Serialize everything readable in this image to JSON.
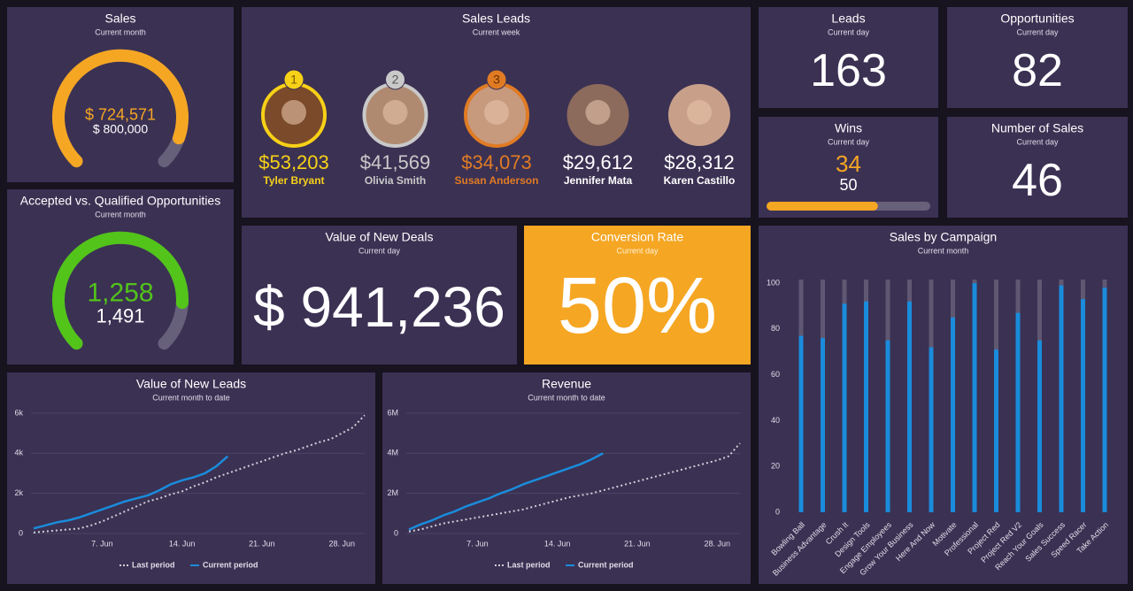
{
  "chart_data": [
    {
      "type": "gauge",
      "title": "Sales",
      "subtitle": "Current month",
      "value": 724571,
      "value_label": "$ 724,571",
      "max": 800000,
      "max_label": "$ 800,000",
      "color": "#f5a623"
    },
    {
      "type": "gauge",
      "title": "Accepted vs. Qualified Opportunities",
      "subtitle": "Current month",
      "value": 1258,
      "value_label": "1,258",
      "max": 1491,
      "max_label": "1,491",
      "color": "#52c41a"
    },
    {
      "type": "leaderboard",
      "title": "Sales Leads",
      "subtitle": "Current week",
      "names": [
        "Tyler Bryant",
        "Olivia Smith",
        "Susan Anderson",
        "Jennifer Mata",
        "Karen Castillo"
      ],
      "values": [
        53203,
        41569,
        34073,
        29612,
        28312
      ],
      "value_labels": [
        "$53,203",
        "$41,569",
        "$34,073",
        "$29,612",
        "$28,312"
      ],
      "ranks": [
        1,
        2,
        3
      ],
      "colors": [
        "#f7d117",
        "#c9c9c9",
        "#e07b24",
        "#ffffff",
        "#ffffff"
      ]
    },
    {
      "type": "kpi",
      "title": "Leads",
      "subtitle": "Current day",
      "value": 163
    },
    {
      "type": "kpi",
      "title": "Opportunities",
      "subtitle": "Current day",
      "value": 82
    },
    {
      "type": "progress",
      "title": "Wins",
      "subtitle": "Current day",
      "value": 34,
      "target": 50,
      "color": "#f5a623"
    },
    {
      "type": "kpi",
      "title": "Number of Sales",
      "subtitle": "Current day",
      "value": 46
    },
    {
      "type": "kpi",
      "title": "Value of New Deals",
      "subtitle": "Current day",
      "value": 941236,
      "value_label": "$ 941,236"
    },
    {
      "type": "kpi",
      "title": "Conversion Rate",
      "subtitle": "Current day",
      "value": 50,
      "value_label": "50%",
      "color": "#f5a623"
    },
    {
      "type": "bar",
      "title": "Sales by Campaign",
      "subtitle": "Current month",
      "categories": [
        "Bowling Ball",
        "Business Advantage",
        "Crush It",
        "Design Tools",
        "Engage Employees",
        "Grow Your Business",
        "Here And Now",
        "Motivate",
        "Professional",
        "Project Red",
        "Project Red V2",
        "Reach Your Goals",
        "Sales Success",
        "Speed Racer",
        "Take Action"
      ],
      "values": [
        77,
        76,
        91,
        92,
        75,
        92,
        72,
        85,
        100,
        71,
        87,
        75,
        99,
        93,
        98
      ],
      "color": "#1a8cdb",
      "ylim": [
        0,
        100
      ],
      "yticks": [
        0,
        20,
        40,
        60,
        80,
        100
      ]
    },
    {
      "type": "line",
      "title": "Value of New Leads",
      "subtitle": "Current month to date",
      "x": [
        1,
        2,
        3,
        4,
        5,
        6,
        7,
        8,
        9,
        10,
        11,
        12,
        13,
        14,
        15,
        16,
        17,
        18,
        19,
        20,
        21,
        22,
        23,
        24,
        25,
        26,
        27,
        28,
        29,
        30
      ],
      "series": [
        {
          "name": "Last period",
          "color": "#cfcfd8",
          "values": [
            50,
            100,
            150,
            200,
            250,
            400,
            600,
            850,
            1100,
            1350,
            1600,
            1750,
            1950,
            2100,
            2350,
            2550,
            2800,
            3000,
            3200,
            3400,
            3600,
            3800,
            4000,
            4150,
            4350,
            4550,
            4700,
            5000,
            5300,
            5900
          ]
        },
        {
          "name": "Current period",
          "color": "#1a8cdb",
          "values": [
            250,
            400,
            550,
            650,
            800,
            1000,
            1200,
            1400,
            1600,
            1750,
            1900,
            2150,
            2450,
            2650,
            2800,
            3000,
            3350,
            3850,
            null,
            null,
            null,
            null,
            null,
            null,
            null,
            null,
            null,
            null,
            null,
            null
          ]
        }
      ],
      "xlim": [
        1,
        30
      ],
      "xticks": [
        {
          "value": 7,
          "label": "7. Jun"
        },
        {
          "value": 14,
          "label": "14. Jun"
        },
        {
          "value": 21,
          "label": "21. Jun"
        },
        {
          "value": 28,
          "label": "28. Jun"
        }
      ],
      "ylim": [
        0,
        6000
      ],
      "yticks": [
        0,
        {
          "value": 2000,
          "label": "2k"
        },
        {
          "value": 4000,
          "label": "4k"
        },
        {
          "value": 6000,
          "label": "6k"
        }
      ],
      "grid": true
    },
    {
      "type": "line",
      "title": "Revenue",
      "subtitle": "Current month to date",
      "x": [
        1,
        2,
        3,
        4,
        5,
        6,
        7,
        8,
        9,
        10,
        11,
        12,
        13,
        14,
        15,
        16,
        17,
        18,
        19,
        20,
        21,
        22,
        23,
        24,
        25,
        26,
        27,
        28,
        29,
        30
      ],
      "series": [
        {
          "name": "Last period",
          "color": "#cfcfd8",
          "values": [
            100000,
            200000,
            350000,
            500000,
            600000,
            700000,
            800000,
            900000,
            1000000,
            1100000,
            1200000,
            1350000,
            1500000,
            1650000,
            1800000,
            1900000,
            2000000,
            2150000,
            2300000,
            2450000,
            2600000,
            2750000,
            2900000,
            3050000,
            3200000,
            3350000,
            3500000,
            3650000,
            3850000,
            4500000
          ]
        },
        {
          "name": "Current period",
          "color": "#1a8cdb",
          "values": [
            200000,
            450000,
            650000,
            900000,
            1100000,
            1350000,
            1550000,
            1750000,
            2000000,
            2200000,
            2450000,
            2650000,
            2850000,
            3050000,
            3250000,
            3450000,
            3700000,
            4000000,
            null,
            null,
            null,
            null,
            null,
            null,
            null,
            null,
            null,
            null,
            null,
            null
          ]
        }
      ],
      "xlim": [
        1,
        30
      ],
      "xticks": [
        {
          "value": 7,
          "label": "7. Jun"
        },
        {
          "value": 14,
          "label": "14. Jun"
        },
        {
          "value": 21,
          "label": "21. Jun"
        },
        {
          "value": 28,
          "label": "28. Jun"
        }
      ],
      "ylim": [
        0,
        6000000
      ],
      "yticks": [
        0,
        {
          "value": 2000000,
          "label": "2M"
        },
        {
          "value": 4000000,
          "label": "4M"
        },
        {
          "value": 6000000,
          "label": "6M"
        }
      ],
      "grid": true
    }
  ]
}
